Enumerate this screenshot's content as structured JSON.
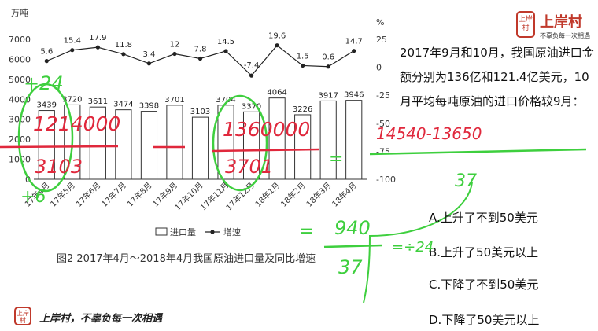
{
  "chart_data": {
    "type": "bar+line",
    "y_left_unit": "万吨",
    "y_right_unit": "%",
    "y_left_ticks": [
      "7000",
      "6000",
      "5000",
      "4000",
      "3000",
      "2000",
      "1000",
      "0"
    ],
    "y_right_ticks": [
      "25",
      "0",
      "-25",
      "-50",
      "-75",
      "-100"
    ],
    "ylim_left": [
      0,
      7000
    ],
    "ylim_right": [
      -100,
      25
    ],
    "categories": [
      "17年4月",
      "17年5月",
      "17年6月",
      "17年7月",
      "17年8月",
      "17年9月",
      "17年10月",
      "17年11月",
      "17年12月",
      "18年1月",
      "18年2月",
      "18年3月",
      "18年4月"
    ],
    "series": [
      {
        "name": "进口量",
        "kind": "bar",
        "values": [
          3439,
          3720,
          3611,
          3474,
          3398,
          3701,
          3103,
          3704,
          3370,
          4064,
          3226,
          3917,
          3946
        ],
        "labels": [
          "3439",
          "3720",
          "3611",
          "3474",
          "3398",
          "3701",
          "3103",
          "3704",
          "3370",
          "4064",
          "3226",
          "3917",
          "3946"
        ]
      },
      {
        "name": "增速",
        "kind": "line",
        "values": [
          5.6,
          15.4,
          17.9,
          11.8,
          3.4,
          12,
          7.8,
          14.5,
          -7.4,
          19.6,
          1.5,
          0.6,
          14.7
        ],
        "labels": [
          "5.6",
          "15.4",
          "17.9",
          "11.8",
          "3.4",
          "12",
          "7.8",
          "14.5",
          "-7.4",
          "19.6",
          "1.5",
          "0.6",
          "14.7"
        ]
      }
    ],
    "legend": {
      "bar": "进口量",
      "line": "增速",
      "placement": "bottom"
    },
    "caption": "图2 2017年4月～2018年4月我国原油进口量及同比增速"
  },
  "question": {
    "stem": "2017年9月和10月，我国原油进口金额分别为136亿和121.4亿美元，10月平均每吨原油的进口价格较9月：",
    "options": [
      "A.上升了不到50美元",
      "B.上升了50美元以上",
      "C.下降了不到50美元",
      "D.下降了50美元以上"
    ]
  },
  "brand": {
    "name": "上岸村",
    "slogan": "不辜负每一次相遇",
    "seal": "上岸村",
    "footer": "上岸村，不辜负每一次相遇"
  },
  "colors": {
    "brand_red": "#c0392b",
    "annotation_red": "#e0283c",
    "annotation_green": "#3ecf3e"
  },
  "annotations": {
    "red": [
      "1214000",
      "3103",
      "1360000",
      "3701",
      "14540-13650"
    ],
    "green": [
      "24",
      "6",
      "37",
      "940",
      "37",
      "24"
    ],
    "green_symbols": [
      "+",
      "+",
      "=",
      "=",
      "=",
      "÷"
    ]
  }
}
